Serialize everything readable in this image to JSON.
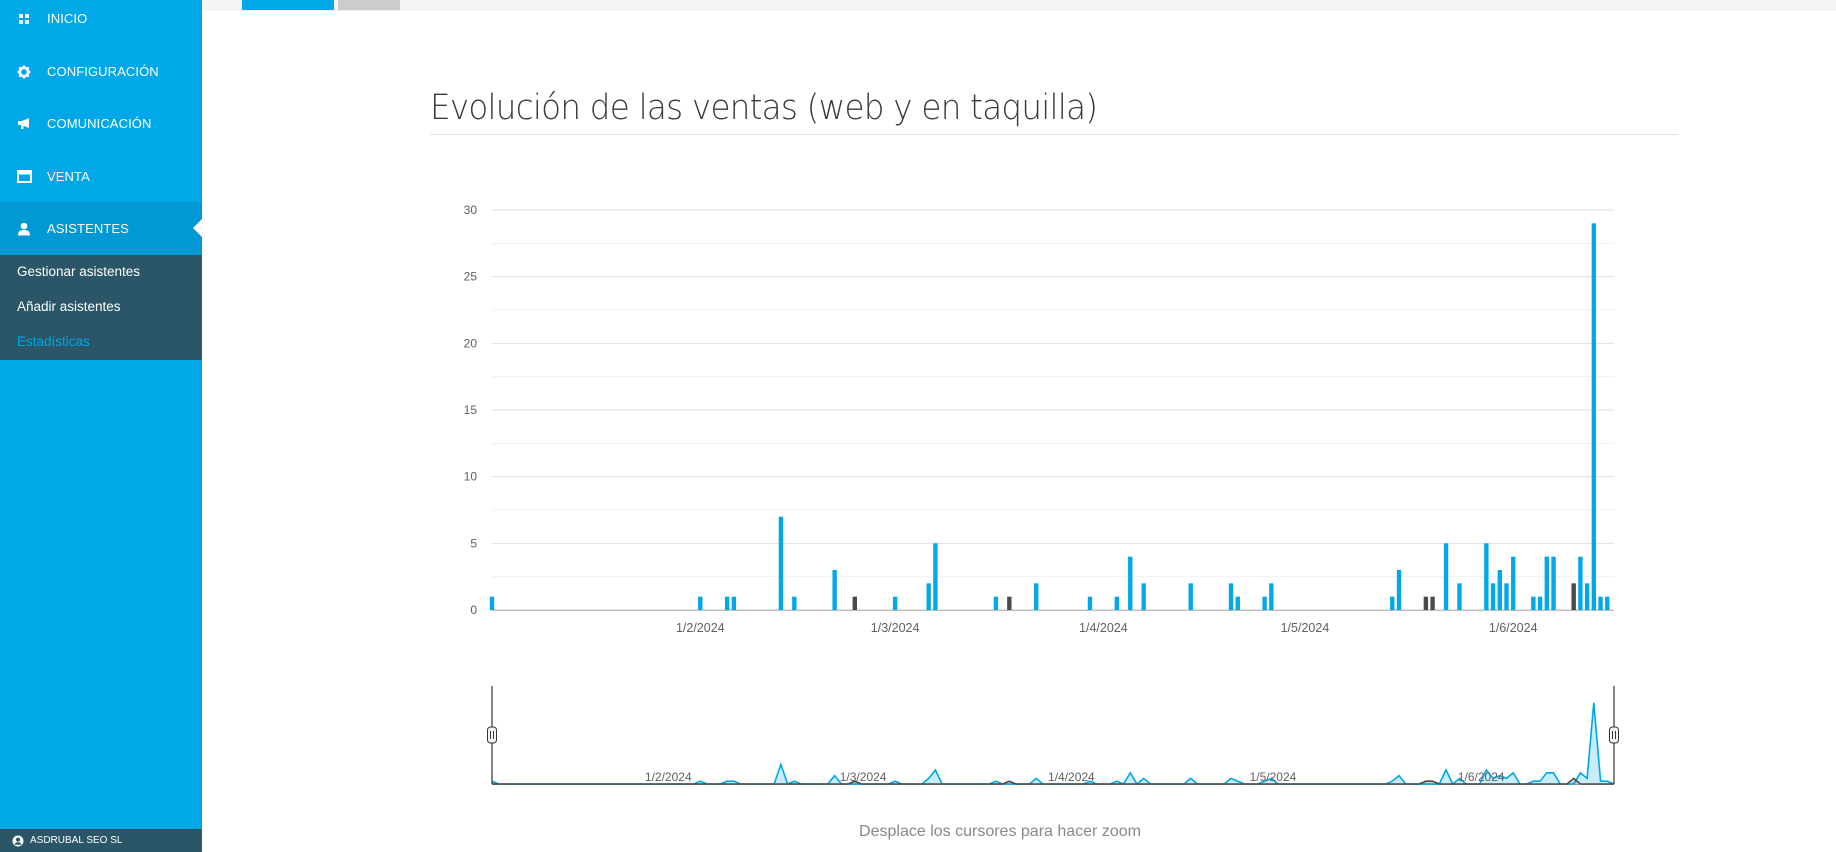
{
  "sidebar": {
    "items": [
      {
        "label": "INICIO",
        "icon": "grid-icon"
      },
      {
        "label": "CONFIGURACIÓN",
        "icon": "gear-icon"
      },
      {
        "label": "COMUNICACIÓN",
        "icon": "megaphone-icon"
      },
      {
        "label": "VENTA",
        "icon": "window-icon"
      },
      {
        "label": "ASISTENTES",
        "icon": "user-icon"
      }
    ],
    "submenu": [
      "Gestionar asistentes",
      "Añadir asistentes",
      "Estadísticas"
    ],
    "company": "ASDRUBAL SEO SL"
  },
  "colors": {
    "sidebar": "#00a8e8",
    "submenu": "#2a5667",
    "web": "#00a8e8",
    "taquilla": "#4a4a4a"
  },
  "page": {
    "title": "Evolución de las ventas (web y en taquilla)",
    "zoom_hint": "Desplace los cursores para hacer zoom"
  },
  "chart_data": {
    "type": "bar",
    "title": "Evolución de las ventas (web y en taquilla)",
    "xlabel": "",
    "ylabel": "",
    "ylim": [
      0,
      30
    ],
    "yticks": [
      0,
      5,
      10,
      15,
      20,
      25,
      30
    ],
    "xticks": [
      "1/2/2024",
      "1/3/2024",
      "1/4/2024",
      "1/5/2024",
      "1/6/2024"
    ],
    "grid": true,
    "date_format": "d/m/yyyy",
    "series": [
      {
        "color": "#00a8e8",
        "points": [
          [
            "2024-01-01",
            1
          ],
          [
            "2024-02-01",
            1
          ],
          [
            "2024-02-05",
            1
          ],
          [
            "2024-02-06",
            1
          ],
          [
            "2024-02-13",
            7
          ],
          [
            "2024-02-15",
            1
          ],
          [
            "2024-02-21",
            3
          ],
          [
            "2024-03-01",
            1
          ],
          [
            "2024-03-06",
            2
          ],
          [
            "2024-03-07",
            5
          ],
          [
            "2024-03-16",
            1
          ],
          [
            "2024-03-22",
            2
          ],
          [
            "2024-03-30",
            1
          ],
          [
            "2024-04-03",
            1
          ],
          [
            "2024-04-05",
            4
          ],
          [
            "2024-04-07",
            2
          ],
          [
            "2024-04-14",
            2
          ],
          [
            "2024-04-20",
            2
          ],
          [
            "2024-04-21",
            1
          ],
          [
            "2024-04-25",
            1
          ],
          [
            "2024-04-26",
            2
          ],
          [
            "2024-05-14",
            1
          ],
          [
            "2024-05-15",
            3
          ],
          [
            "2024-05-22",
            5
          ],
          [
            "2024-05-24",
            2
          ],
          [
            "2024-05-28",
            5
          ],
          [
            "2024-05-29",
            2
          ],
          [
            "2024-05-30",
            3
          ],
          [
            "2024-05-31",
            2
          ],
          [
            "2024-06-01",
            4
          ],
          [
            "2024-06-04",
            1
          ],
          [
            "2024-06-05",
            1
          ],
          [
            "2024-06-06",
            4
          ],
          [
            "2024-06-07",
            4
          ],
          [
            "2024-06-11",
            4
          ],
          [
            "2024-06-12",
            2
          ],
          [
            "2024-06-13",
            29
          ],
          [
            "2024-06-14",
            1
          ],
          [
            "2024-06-15",
            1
          ]
        ]
      },
      {
        "color": "#4a4a4a",
        "points": [
          [
            "2024-02-24",
            1
          ],
          [
            "2024-03-18",
            1
          ],
          [
            "2024-05-19",
            1
          ],
          [
            "2024-05-20",
            1
          ],
          [
            "2024-06-10",
            2
          ]
        ]
      }
    ]
  }
}
